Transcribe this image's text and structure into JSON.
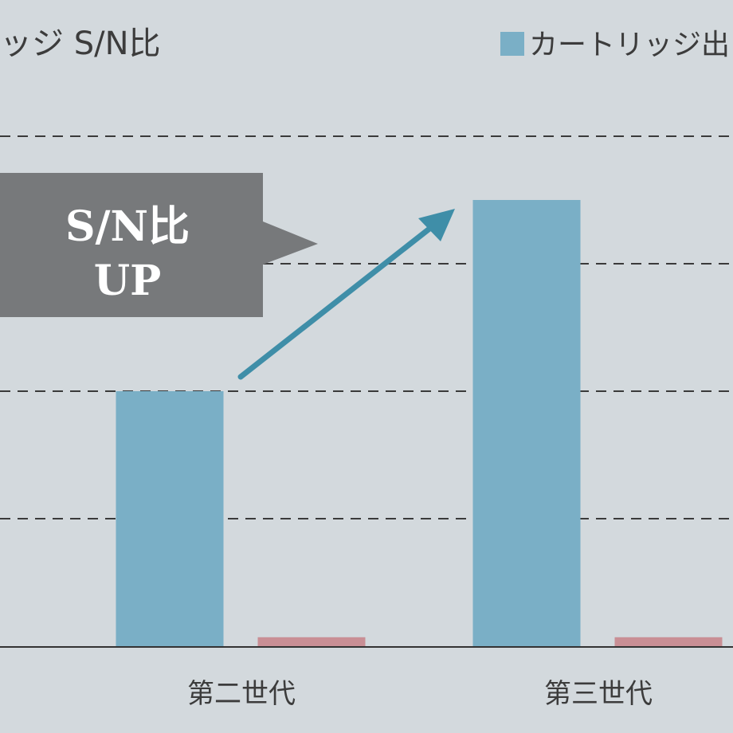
{
  "chart_data": {
    "type": "bar",
    "title": "リッジ S/N比",
    "legend": {
      "label": "カートリッジ出",
      "color": "#7aafc6",
      "placement": "top-right"
    },
    "categories": [
      "第二世代",
      "第三世代"
    ],
    "series": [
      {
        "name": "カートリッジ出",
        "color": "#7aafc6",
        "values": [
          2,
          3.5
        ]
      },
      {
        "color": "#c98f95",
        "values": [
          0.07,
          0.07
        ]
      }
    ],
    "ylim": [
      0,
      4
    ],
    "yticks": [
      1,
      2,
      3,
      4
    ],
    "grid": true,
    "grid_style": "dashed",
    "annotation": {
      "lines": [
        "S/N比",
        "UP"
      ],
      "color": "#77797b",
      "text_color": "#ffffff"
    },
    "arrow_color": "#3f8ea8"
  }
}
